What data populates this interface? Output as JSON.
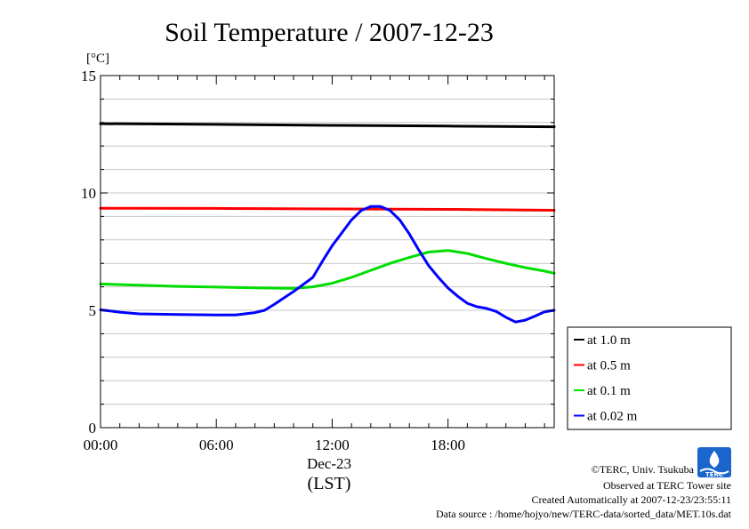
{
  "chart_data": {
    "type": "line",
    "title": "Soil Temperature / 2007-12-23",
    "ylabel": "[°C]",
    "xlabel": "(LST)",
    "x_date_label": "Dec-23",
    "ylim": [
      0,
      15
    ],
    "xlim": [
      0,
      23.5
    ],
    "y_ticks": [
      0,
      5,
      10,
      15
    ],
    "y_tick_labels": [
      "0",
      "5",
      "10",
      "15"
    ],
    "x_ticks": [
      0,
      6,
      12,
      18
    ],
    "x_tick_labels": [
      "00:00",
      "06:00",
      "12:00",
      "18:00"
    ],
    "grid": true,
    "legend_position": "bottom-right outside",
    "series": [
      {
        "name": "at 1.0 m",
        "color": "#000000",
        "x": [
          0,
          6,
          12,
          18,
          23.5
        ],
        "y": [
          12.95,
          12.92,
          12.88,
          12.85,
          12.82
        ]
      },
      {
        "name": "at 0.5 m",
        "color": "#ff0000",
        "x": [
          0,
          6,
          12,
          18,
          23.5
        ],
        "y": [
          9.35,
          9.34,
          9.32,
          9.3,
          9.26
        ]
      },
      {
        "name": "at 0.1 m",
        "color": "#00dd00",
        "x": [
          0,
          2,
          4,
          6,
          8,
          10,
          11,
          12,
          13,
          14,
          15,
          16,
          17,
          18,
          19,
          20,
          21,
          22,
          23,
          23.5
        ],
        "y": [
          6.12,
          6.07,
          6.02,
          5.99,
          5.96,
          5.93,
          6.0,
          6.15,
          6.4,
          6.7,
          7.0,
          7.25,
          7.48,
          7.55,
          7.42,
          7.2,
          7.0,
          6.82,
          6.67,
          6.58
        ]
      },
      {
        "name": "at 0.02 m",
        "color": "#0000ff",
        "x": [
          0,
          1,
          2,
          4,
          6,
          7,
          8,
          8.5,
          9,
          10,
          11,
          11.5,
          12,
          12.5,
          13,
          13.5,
          14,
          14.5,
          15,
          15.5,
          16,
          16.5,
          17,
          17.5,
          18,
          18.5,
          19,
          19.5,
          20,
          20.5,
          21,
          21.5,
          22,
          22.5,
          23,
          23.5
        ],
        "y": [
          5.02,
          4.92,
          4.85,
          4.82,
          4.8,
          4.8,
          4.9,
          5.0,
          5.25,
          5.8,
          6.4,
          7.1,
          7.75,
          8.3,
          8.85,
          9.25,
          9.42,
          9.42,
          9.25,
          8.85,
          8.25,
          7.55,
          6.9,
          6.4,
          5.95,
          5.6,
          5.3,
          5.15,
          5.08,
          4.95,
          4.7,
          4.5,
          4.58,
          4.75,
          4.93,
          5.0
        ]
      }
    ]
  },
  "footer": {
    "copyright": "©TERC, Univ. Tsukuba",
    "observed": "Observed at TERC Tower site",
    "created": "Created Automatically at 2007-12-23/23:55:11",
    "source": "Data source : /home/hojyo/new/TERC-data/sorted_data/MET.10s.dat",
    "logo_text": "TERC"
  }
}
